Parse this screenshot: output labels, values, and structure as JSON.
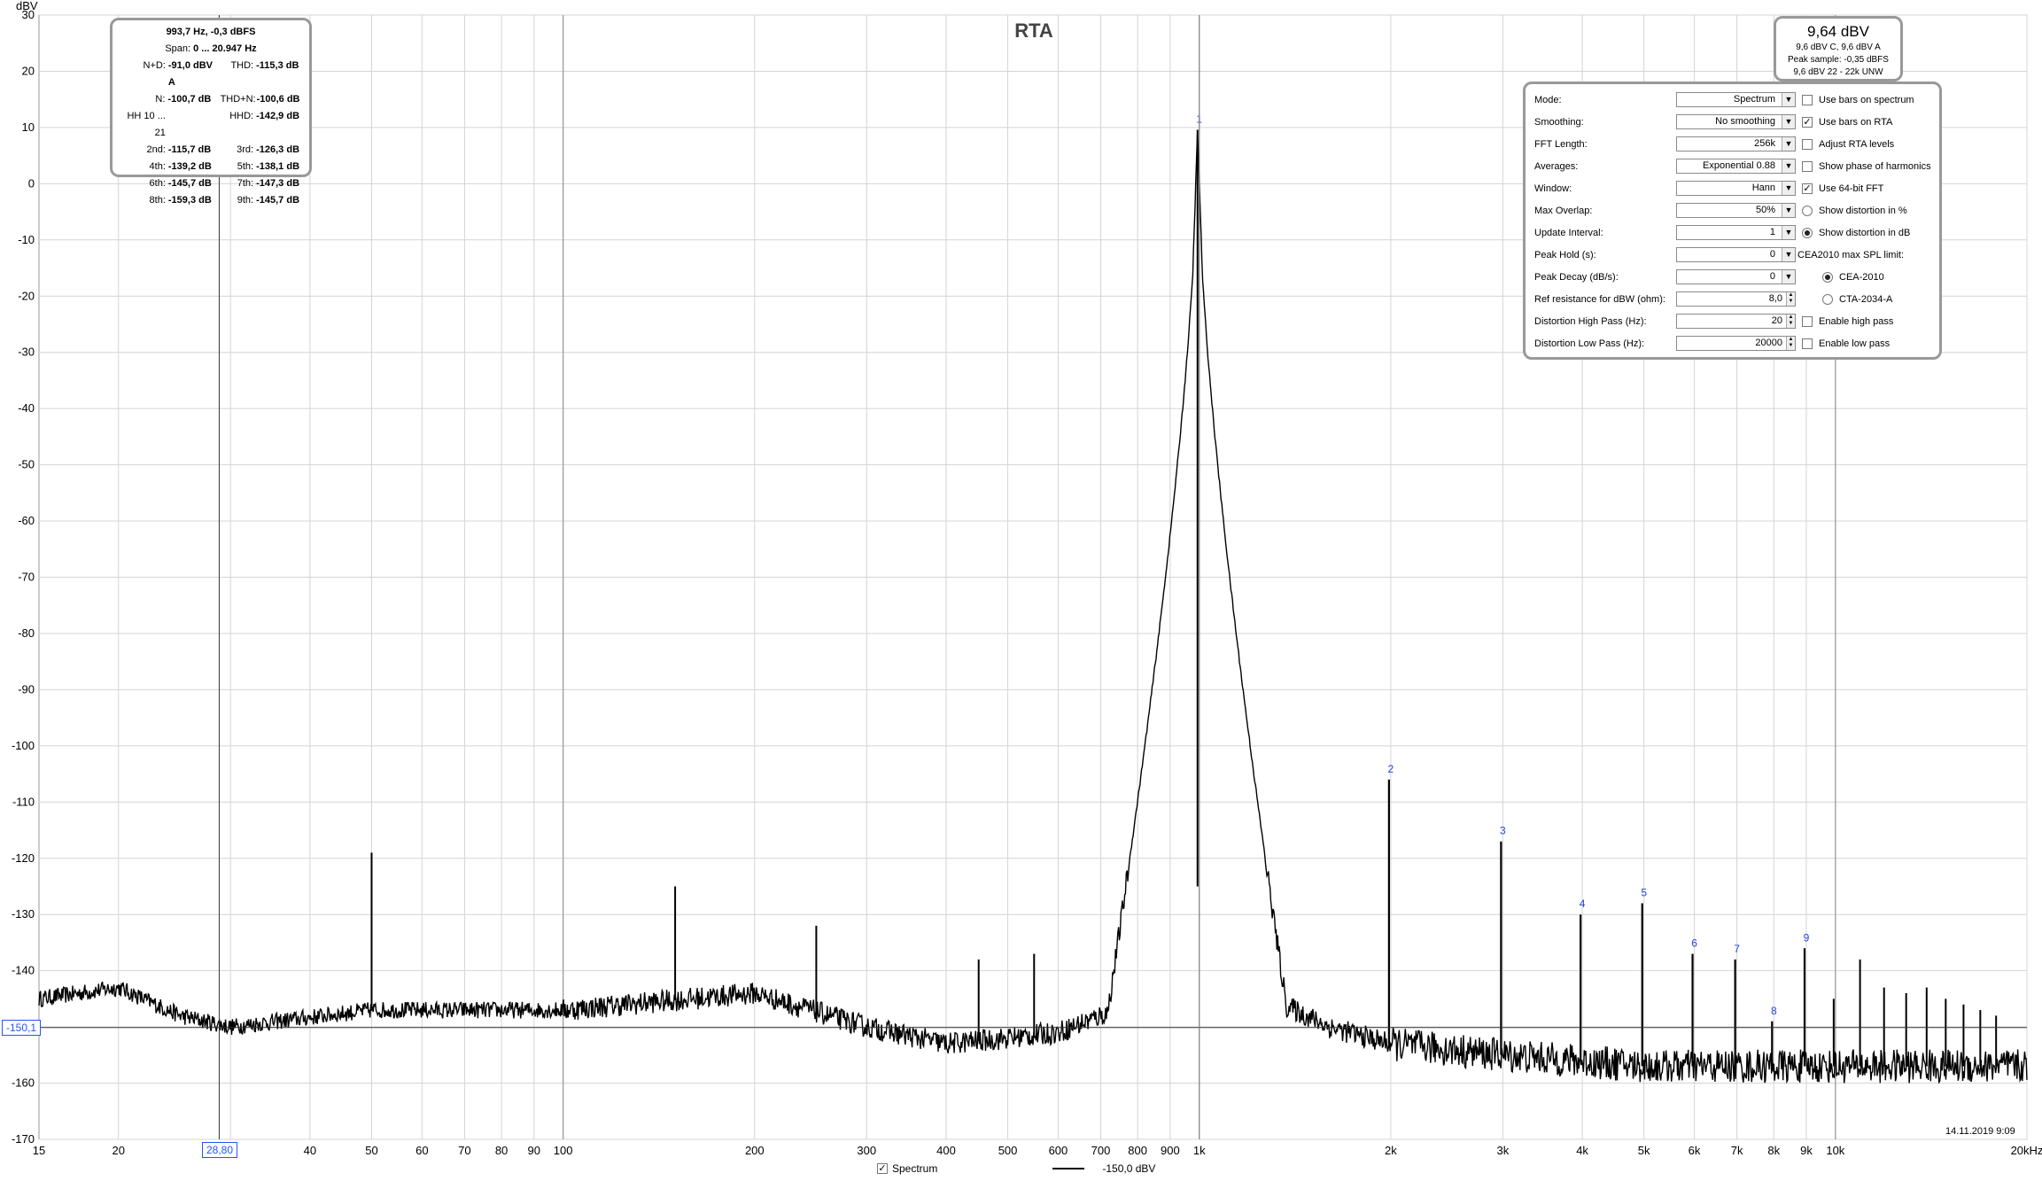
{
  "chart_data": {
    "type": "line",
    "title": "RTA",
    "ylabel": "dBV",
    "xlabel": "",
    "x_scale": "log",
    "xlim": [
      15,
      20000
    ],
    "ylim": [
      -170,
      30
    ],
    "grid": true,
    "x_tick_labels": [
      {
        "value": 15,
        "label": "15"
      },
      {
        "value": 20,
        "label": "20"
      },
      {
        "value": 40,
        "label": "40"
      },
      {
        "value": 50,
        "label": "50"
      },
      {
        "value": 60,
        "label": "60"
      },
      {
        "value": 70,
        "label": "70"
      },
      {
        "value": 80,
        "label": "80"
      },
      {
        "value": 90,
        "label": "90"
      },
      {
        "value": 100,
        "label": "100"
      },
      {
        "value": 200,
        "label": "200"
      },
      {
        "value": 300,
        "label": "300"
      },
      {
        "value": 400,
        "label": "400"
      },
      {
        "value": 500,
        "label": "500"
      },
      {
        "value": 600,
        "label": "600"
      },
      {
        "value": 700,
        "label": "700"
      },
      {
        "value": 800,
        "label": "800"
      },
      {
        "value": 900,
        "label": "900"
      },
      {
        "value": 1000,
        "label": "1k"
      },
      {
        "value": 2000,
        "label": "2k"
      },
      {
        "value": 3000,
        "label": "3k"
      },
      {
        "value": 4000,
        "label": "4k"
      },
      {
        "value": 5000,
        "label": "5k"
      },
      {
        "value": 6000,
        "label": "6k"
      },
      {
        "value": 7000,
        "label": "7k"
      },
      {
        "value": 8000,
        "label": "8k"
      },
      {
        "value": 9000,
        "label": "9k"
      },
      {
        "value": 10000,
        "label": "10k"
      },
      {
        "value": 20000,
        "label": "20kHz"
      }
    ],
    "y_ticks": [
      30,
      20,
      10,
      0,
      -10,
      -20,
      -30,
      -40,
      -50,
      -60,
      -70,
      -80,
      -90,
      -100,
      -110,
      -120,
      -130,
      -140,
      -150,
      -160,
      -170
    ],
    "series": [
      {
        "name": "Spectrum",
        "color": "#000000",
        "noise_floor": [
          {
            "f": 15,
            "db": -145
          },
          {
            "f": 20,
            "db": -143
          },
          {
            "f": 25,
            "db": -148
          },
          {
            "f": 30,
            "db": -150
          },
          {
            "f": 50,
            "db": -147
          },
          {
            "f": 100,
            "db": -147
          },
          {
            "f": 200,
            "db": -144
          },
          {
            "f": 300,
            "db": -150
          },
          {
            "f": 400,
            "db": -153
          },
          {
            "f": 500,
            "db": -152
          },
          {
            "f": 600,
            "db": -151
          },
          {
            "f": 700,
            "db": -148
          },
          {
            "f": 800,
            "db": -145
          },
          {
            "f": 900,
            "db": -138
          },
          {
            "f": 993.7,
            "db": 9.6
          },
          {
            "f": 1100,
            "db": -138
          },
          {
            "f": 1300,
            "db": -145
          },
          {
            "f": 1600,
            "db": -150
          },
          {
            "f": 2000,
            "db": -153
          },
          {
            "f": 3000,
            "db": -155
          },
          {
            "f": 5000,
            "db": -157
          },
          {
            "f": 10000,
            "db": -157
          },
          {
            "f": 20000,
            "db": -157
          }
        ],
        "spurs": [
          {
            "f": 50,
            "db": -119
          },
          {
            "f": 150,
            "db": -125
          },
          {
            "f": 250,
            "db": -132
          },
          {
            "f": 450,
            "db": -138
          },
          {
            "f": 550,
            "db": -137
          }
        ],
        "harmonics": [
          {
            "n": "1",
            "f": 993.7,
            "db": 9.6
          },
          {
            "n": "2",
            "f": 1987,
            "db": -106
          },
          {
            "n": "3",
            "f": 2981,
            "db": -117
          },
          {
            "n": "4",
            "f": 3975,
            "db": -130
          },
          {
            "n": "5",
            "f": 4969,
            "db": -128
          },
          {
            "n": "6",
            "f": 5962,
            "db": -137
          },
          {
            "n": "7",
            "f": 6956,
            "db": -138
          },
          {
            "n": "8",
            "f": 7950,
            "db": -149
          },
          {
            "n": "9",
            "f": 8943,
            "db": -136
          }
        ],
        "extra_lines": [
          {
            "f": 9937,
            "db": -145
          },
          {
            "f": 10931,
            "db": -138
          },
          {
            "f": 11924,
            "db": -143
          },
          {
            "f": 12918,
            "db": -144
          },
          {
            "f": 13912,
            "db": -143
          },
          {
            "f": 14906,
            "db": -145
          },
          {
            "f": 15899,
            "db": -146
          },
          {
            "f": 16893,
            "db": -147
          },
          {
            "f": 17887,
            "db": -148
          }
        ]
      }
    ],
    "cursor": {
      "x_label": "28,80",
      "x_value": 28.8,
      "y_label": "-150,1",
      "y_value": -150.1
    },
    "fundamental_line_f": 1000
  },
  "stats": {
    "header1": "993,7 Hz, -0,3 dBFS",
    "header2_prefix": "Span: ",
    "header2_value": "0 ... 20.947 Hz",
    "rows": [
      {
        "l1": "N+D:",
        "v1": "-91,0 dBV A",
        "l2": "THD:",
        "v2": "-115,3 dB"
      },
      {
        "l1": "N:",
        "v1": "-100,7 dB",
        "l2": "THD+N:",
        "v2": "-100,6 dB"
      },
      {
        "l1": "HH 10 ... 21",
        "v1": "",
        "l2": "HHD:",
        "v2": "-142,9 dB"
      },
      {
        "l1": "2nd:",
        "v1": "-115,7 dB",
        "l2": "3rd:",
        "v2": "-126,3 dB"
      },
      {
        "l1": "4th:",
        "v1": "-139,2 dB",
        "l2": "5th:",
        "v2": "-138,1 dB"
      },
      {
        "l1": "6th:",
        "v1": "-145,7 dB",
        "l2": "7th:",
        "v2": "-147,3 dB"
      },
      {
        "l1": "8th:",
        "v1": "-159,3 dB",
        "l2": "9th:",
        "v2": "-145,7 dB"
      }
    ]
  },
  "level": {
    "big": "9,64 dBV",
    "line1": "9,6 dBV C, 9,6 dBV A",
    "line2": "Peak sample: -0,35 dBFS",
    "line3": "9,6 dBV 22 - 22k UNW"
  },
  "settings": {
    "mode_label": "Mode:",
    "mode_value": "Spectrum",
    "smoothing_label": "Smoothing:",
    "smoothing_value": "No  smoothing",
    "fft_label": "FFT Length:",
    "fft_value": "256k",
    "averages_label": "Averages:",
    "averages_value": "Exponential 0.88",
    "window_label": "Window:",
    "window_value": "Hann",
    "overlap_label": "Max Overlap:",
    "overlap_value": "50%",
    "update_label": "Update Interval:",
    "update_value": "1",
    "peakhold_label": "Peak Hold (s):",
    "peakhold_value": "0",
    "peakdecay_label": "Peak Decay (dB/s):",
    "peakdecay_value": "0",
    "refres_label": "Ref resistance for dBW (ohm):",
    "refres_value": "8,0",
    "disthp_label": "Distortion High Pass (Hz):",
    "disthp_value": "20",
    "distlp_label": "Distortion Low Pass (Hz):",
    "distlp_value": "20000",
    "use_bars_spectrum": "Use bars on spectrum",
    "use_bars_rta": "Use bars on RTA",
    "adjust_rta": "Adjust RTA levels",
    "show_phase": "Show phase of harmonics",
    "use_64bit": "Use 64-bit FFT",
    "show_dist_pct": "Show distortion in %",
    "show_dist_db": "Show distortion in dB",
    "cea_label": "CEA2010 max SPL limit:",
    "cea2010": "CEA-2010",
    "cta2034": "CTA-2034-A",
    "enable_hp": "Enable high pass",
    "enable_lp": "Enable low pass"
  },
  "legend": {
    "check": "✓",
    "series_label": "Spectrum",
    "level_label": "-150,0 dBV"
  },
  "timestamp": "14.11.2019 9:09"
}
